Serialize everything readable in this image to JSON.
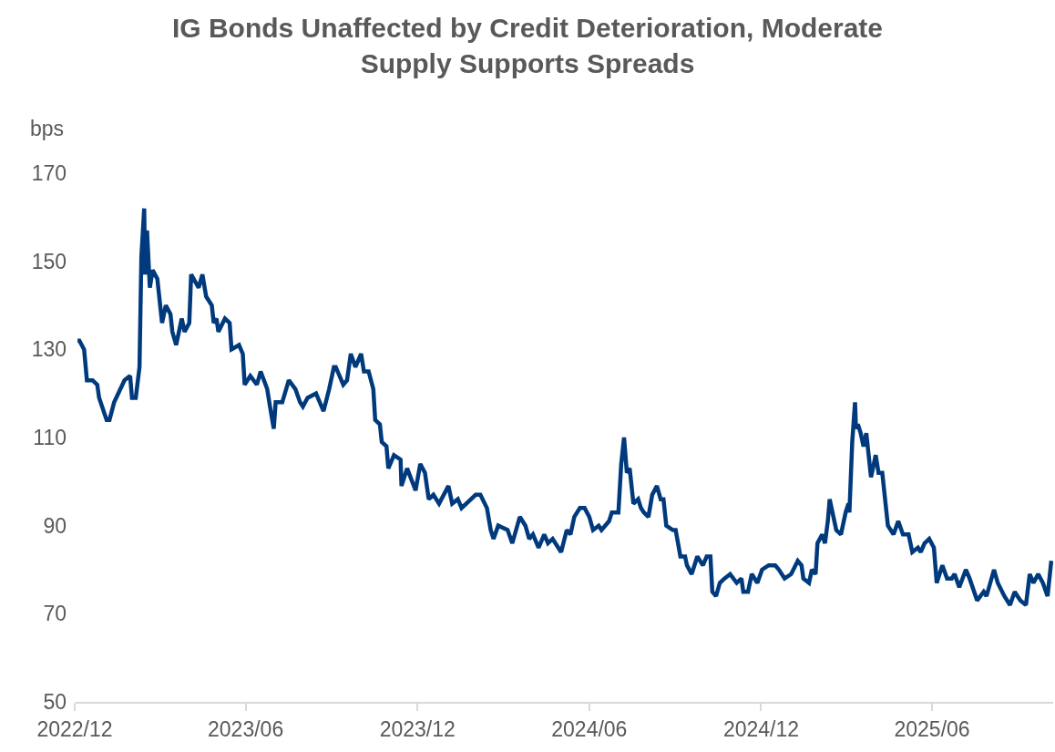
{
  "chart_data": {
    "type": "line",
    "title": "IG Bonds Unaffected by Credit Deterioration, Moderate\nSupply Supports Spreads",
    "ylabel": "bps",
    "x": [
      "2022-12-04",
      "2022-12-06",
      "2022-12-11",
      "2022-12-14",
      "2022-12-20",
      "2022-12-25",
      "2022-12-27",
      "2023-01-04",
      "2023-01-07",
      "2023-01-12",
      "2023-01-23",
      "2023-01-29",
      "2023-01-31",
      "2023-02-04",
      "2023-02-08",
      "2023-02-10",
      "2023-02-13",
      "2023-02-14",
      "2023-02-16",
      "2023-02-19",
      "2023-02-22",
      "2023-02-27",
      "2023-03-04",
      "2023-03-08",
      "2023-03-13",
      "2023-03-15",
      "2023-03-19",
      "2023-03-25",
      "2023-03-28",
      "2023-04-02",
      "2023-04-04",
      "2023-04-12",
      "2023-04-16",
      "2023-04-20",
      "2023-04-26",
      "2023-04-28",
      "2023-05-01",
      "2023-05-03",
      "2023-05-10",
      "2023-05-15",
      "2023-05-17",
      "2023-05-25",
      "2023-05-29",
      "2023-05-31",
      "2023-06-06",
      "2023-06-13",
      "2023-06-17",
      "2023-06-24",
      "2023-06-27",
      "2023-07-01",
      "2023-07-03",
      "2023-07-10",
      "2023-07-17",
      "2023-07-24",
      "2023-07-29",
      "2023-08-01",
      "2023-08-06",
      "2023-08-15",
      "2023-08-19",
      "2023-08-23",
      "2023-08-29",
      "2023-09-03",
      "2023-09-05",
      "2023-09-13",
      "2023-09-17",
      "2023-09-21",
      "2023-09-26",
      "2023-10-02",
      "2023-10-05",
      "2023-10-10",
      "2023-10-15",
      "2023-10-17",
      "2023-10-22",
      "2023-10-24",
      "2023-10-29",
      "2023-10-31",
      "2023-11-06",
      "2023-11-13",
      "2023-11-14",
      "2023-11-20",
      "2023-11-29",
      "2023-12-04",
      "2023-12-09",
      "2023-12-13",
      "2023-12-18",
      "2023-12-24",
      "2024-01-03",
      "2024-01-07",
      "2024-01-13",
      "2024-01-17",
      "2024-02-01",
      "2024-02-06",
      "2024-02-13",
      "2024-02-17",
      "2024-02-20",
      "2024-02-25",
      "2024-03-06",
      "2024-03-11",
      "2024-03-19",
      "2024-03-25",
      "2024-03-29",
      "2024-04-02",
      "2024-04-08",
      "2024-04-14",
      "2024-04-18",
      "2024-04-23",
      "2024-05-02",
      "2024-05-08",
      "2024-05-12",
      "2024-05-16",
      "2024-05-22",
      "2024-05-27",
      "2024-06-01",
      "2024-06-05",
      "2024-06-11",
      "2024-06-14",
      "2024-06-22",
      "2024-06-25",
      "2024-07-02",
      "2024-07-05",
      "2024-07-08",
      "2024-07-11",
      "2024-07-14",
      "2024-07-18",
      "2024-07-23",
      "2024-07-26",
      "2024-07-29",
      "2024-08-03",
      "2024-08-07",
      "2024-08-12",
      "2024-08-16",
      "2024-08-19",
      "2024-08-22",
      "2024-08-29",
      "2024-09-01",
      "2024-09-06",
      "2024-09-11",
      "2024-09-13",
      "2024-09-18",
      "2024-09-24",
      "2024-09-30",
      "2024-10-04",
      "2024-10-08",
      "2024-10-10",
      "2024-10-14",
      "2024-10-18",
      "2024-10-23",
      "2024-10-29",
      "2024-11-05",
      "2024-11-10",
      "2024-11-12",
      "2024-11-17",
      "2024-11-21",
      "2024-11-27",
      "2024-12-02",
      "2024-12-09",
      "2024-12-16",
      "2024-12-20",
      "2024-12-26",
      "2025-01-02",
      "2025-01-09",
      "2025-01-13",
      "2025-01-15",
      "2025-01-21",
      "2025-01-24",
      "2025-01-28",
      "2025-01-30",
      "2025-02-04",
      "2025-02-07",
      "2025-02-10",
      "2025-02-12",
      "2025-02-16",
      "2025-02-19",
      "2025-02-24",
      "2025-03-01",
      "2025-03-04",
      "2025-03-05",
      "2025-03-08",
      "2025-03-11",
      "2025-03-12",
      "2025-03-14",
      "2025-03-17",
      "2025-03-20",
      "2025-03-23",
      "2025-03-28",
      "2025-04-02",
      "2025-04-05",
      "2025-04-09",
      "2025-04-15",
      "2025-04-21",
      "2025-04-26",
      "2025-05-01",
      "2025-05-07",
      "2025-05-11",
      "2025-05-17",
      "2025-05-20",
      "2025-05-24",
      "2025-05-29",
      "2025-06-03",
      "2025-06-06",
      "2025-06-12",
      "2025-06-17",
      "2025-06-22",
      "2025-06-25",
      "2025-06-30",
      "2025-07-07",
      "2025-07-11",
      "2025-07-19",
      "2025-07-26",
      "2025-07-29",
      "2025-08-06",
      "2025-08-10",
      "2025-08-17",
      "2025-08-23",
      "2025-08-28",
      "2025-09-03",
      "2025-09-09",
      "2025-09-13",
      "2025-09-17",
      "2025-09-22",
      "2025-09-27",
      "2025-10-02",
      "2025-10-06"
    ],
    "series": [
      {
        "color": "#003a7d",
        "values": [
          132,
          132,
          130,
          123,
          123,
          122,
          119,
          114,
          114,
          118,
          123,
          124,
          119,
          119,
          126,
          151,
          162,
          147,
          157,
          144,
          148,
          146,
          136,
          140,
          138,
          134,
          131,
          137,
          134,
          136,
          147,
          144,
          147,
          142,
          140,
          136,
          137,
          134,
          137,
          136,
          130,
          131,
          129,
          122,
          124,
          122,
          125,
          121,
          117,
          112,
          118,
          118,
          123,
          121,
          118,
          117,
          119,
          120,
          118,
          116,
          121,
          126,
          126,
          122,
          123,
          129,
          126,
          129,
          125,
          125,
          121,
          114,
          113,
          109,
          108,
          103,
          106,
          105,
          99,
          103,
          98,
          104,
          102,
          96,
          97,
          95,
          99,
          95,
          96,
          94,
          97,
          97,
          94,
          89,
          87,
          90,
          89,
          86,
          92,
          90,
          87,
          88,
          85,
          88,
          86,
          87,
          84,
          89,
          88,
          92,
          94,
          94,
          92,
          89,
          90,
          89,
          91,
          93,
          93,
          104,
          110,
          102,
          103,
          95,
          96,
          94,
          93,
          92,
          97,
          99,
          96,
          96,
          90,
          89,
          89,
          83,
          83,
          81,
          79,
          83,
          81,
          83,
          83,
          75,
          74,
          77,
          78,
          79,
          77,
          78,
          75,
          75,
          79,
          77,
          80,
          81,
          81,
          80,
          78,
          79,
          82,
          81,
          78,
          77,
          80,
          79,
          86,
          88,
          86,
          91,
          96,
          92,
          89,
          88,
          93,
          95,
          93,
          109,
          118,
          112,
          113,
          111,
          108,
          111,
          101,
          106,
          102,
          102,
          90,
          88,
          91,
          88,
          88,
          84,
          85,
          84,
          86,
          87,
          85,
          77,
          81,
          78,
          78,
          79,
          76,
          80,
          78,
          73,
          75,
          74,
          80,
          77,
          74,
          72,
          75,
          73,
          72,
          79,
          77,
          79,
          77,
          74,
          82
        ]
      }
    ],
    "xlim": [
      "2022-12-01",
      "2025-10-08"
    ],
    "xticks": [
      {
        "value": "2022-12-01",
        "label": "2022/12"
      },
      {
        "value": "2023-06-01",
        "label": "2023/06"
      },
      {
        "value": "2023-12-01",
        "label": "2023/12"
      },
      {
        "value": "2024-06-01",
        "label": "2024/06"
      },
      {
        "value": "2024-12-01",
        "label": "2024/12"
      },
      {
        "value": "2025-06-01",
        "label": "2025/06"
      }
    ],
    "ylim": [
      50,
      170
    ],
    "yticks": [
      50,
      70,
      90,
      110,
      130,
      150,
      170
    ],
    "grid": false,
    "legend": false,
    "marker": "none",
    "line_style": "solid"
  }
}
